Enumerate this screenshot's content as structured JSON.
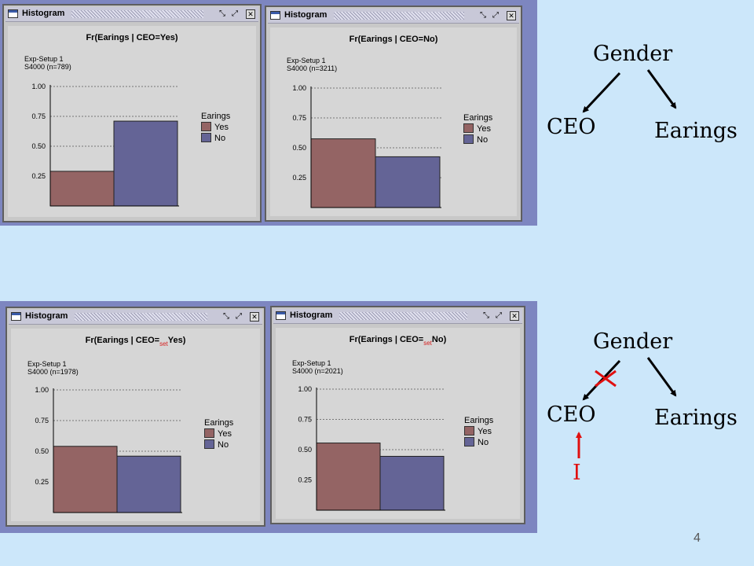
{
  "slide": {
    "page_number": "4"
  },
  "windows": [
    {
      "title": "Histogram",
      "chart_title_prefix": "Fr(Earings | CEO=",
      "chart_title_sub": "",
      "chart_title_suffix": "Yes)",
      "setup": "Exp-Setup 1",
      "sample": "S4000 (n=789)"
    },
    {
      "title": "Histogram",
      "chart_title_prefix": "Fr(Earings | CEO=",
      "chart_title_sub": "",
      "chart_title_suffix": "No)",
      "setup": "Exp-Setup 1",
      "sample": "S4000 (n=3211)"
    },
    {
      "title": "Histogram",
      "chart_title_prefix": "Fr(Earings | CEO=",
      "chart_title_sub": "set",
      "chart_title_suffix": "Yes)",
      "setup": "Exp-Setup 1",
      "sample": "S4000 (n=1978)"
    },
    {
      "title": "Histogram",
      "chart_title_prefix": "Fr(Earings | CEO=",
      "chart_title_sub": "set",
      "chart_title_suffix": "No)",
      "setup": "Exp-Setup 1",
      "sample": "S4000 (n=2021)"
    }
  ],
  "colors": {
    "yes": "#946464",
    "no": "#646496",
    "close_mark": "#e01010"
  },
  "chart_data": [
    {
      "type": "bar",
      "title": "Fr(Earings | CEO=Yes)",
      "categories": [
        "Yes",
        "No"
      ],
      "values": [
        0.29,
        0.71
      ],
      "ylim": [
        0,
        1.0
      ],
      "yticks": [
        "1.00",
        "0.75",
        "0.50",
        "0.25"
      ],
      "grid": true,
      "legend": {
        "title": "Earings",
        "position": "right",
        "entries": [
          "Yes",
          "No"
        ]
      }
    },
    {
      "type": "bar",
      "title": "Fr(Earings | CEO=No)",
      "categories": [
        "Yes",
        "No"
      ],
      "values": [
        0.575,
        0.425
      ],
      "ylim": [
        0,
        1.0
      ],
      "yticks": [
        "1.00",
        "0.75",
        "0.50",
        "0.25"
      ],
      "grid": true,
      "legend": {
        "title": "Earings",
        "position": "right",
        "entries": [
          "Yes",
          "No"
        ]
      }
    },
    {
      "type": "bar",
      "title": "Fr(Earings | CEO=set Yes)",
      "categories": [
        "Yes",
        "No"
      ],
      "values": [
        0.54,
        0.46
      ],
      "ylim": [
        0,
        1.0
      ],
      "yticks": [
        "1.00",
        "0.75",
        "0.50",
        "0.25"
      ],
      "grid": true,
      "legend": {
        "title": "Earings",
        "position": "right",
        "entries": [
          "Yes",
          "No"
        ]
      }
    },
    {
      "type": "bar",
      "title": "Fr(Earings | CEO=set No)",
      "categories": [
        "Yes",
        "No"
      ],
      "values": [
        0.555,
        0.445
      ],
      "ylim": [
        0,
        1.0
      ],
      "yticks": [
        "1.00",
        "0.75",
        "0.50",
        "0.25"
      ],
      "grid": true,
      "legend": {
        "title": "Earings",
        "position": "right",
        "entries": [
          "Yes",
          "No"
        ]
      }
    }
  ],
  "diagrams": [
    {
      "gender": "Gender",
      "ceo": "CEO",
      "earnings": "Earings",
      "intervention": ""
    },
    {
      "gender": "Gender",
      "ceo": "CEO",
      "earnings": "Earings",
      "intervention": "I"
    }
  ]
}
